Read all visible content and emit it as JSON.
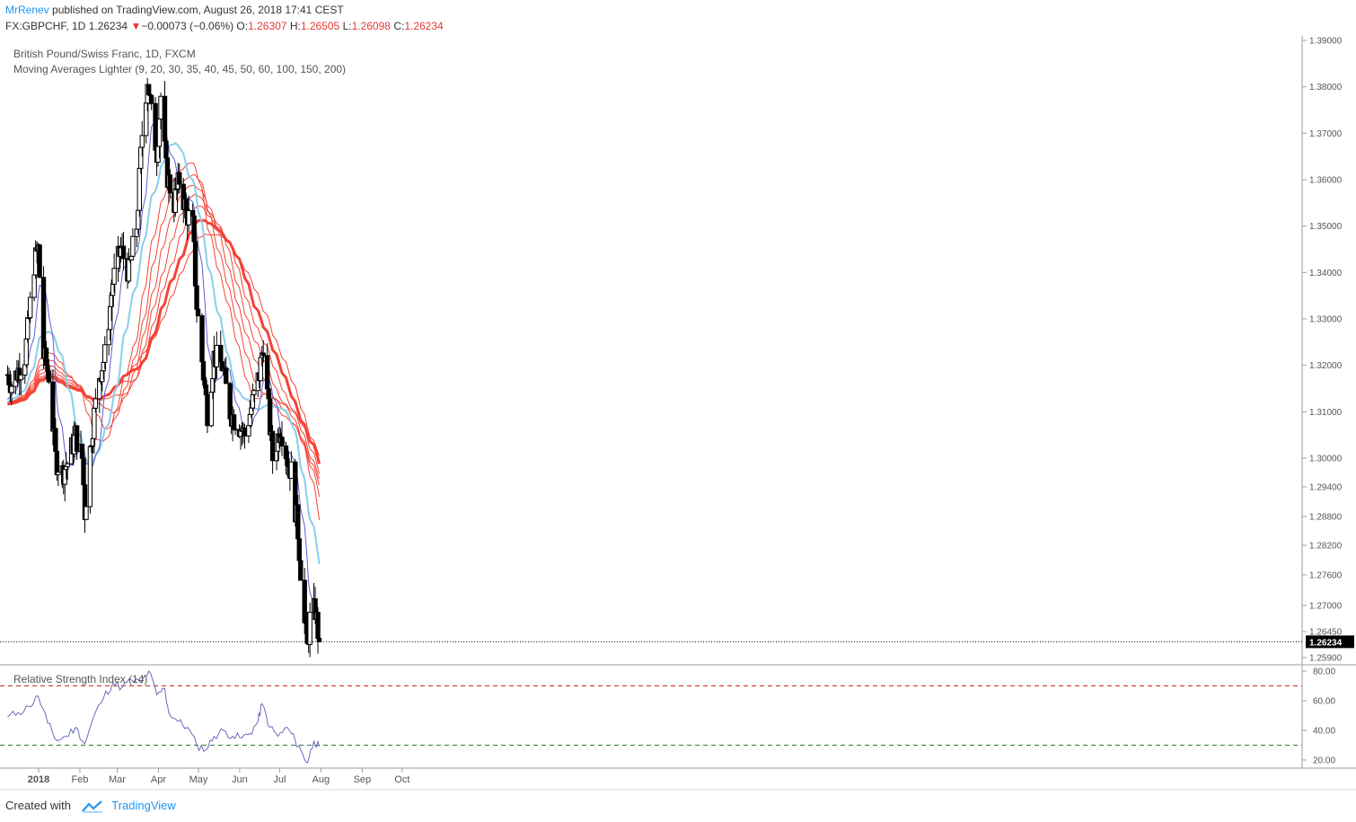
{
  "header": {
    "author": "MrRenev",
    "published_text": "published on TradingView.com, August 26, 2018 17:41 CEST",
    "symbol": "FX:GBPCHF, 1D",
    "last": "1.26234",
    "change_arrow": "▼",
    "change": "−0.00073 (−0.06%)",
    "open_label": "O:",
    "open": "1.26307",
    "high_label": "H:",
    "high": "1.26505",
    "low_label": "L:",
    "low": "1.26098",
    "close_label": "C:",
    "close": "1.26234"
  },
  "legend": {
    "series_name": "British Pound/Swiss Franc, 1D, FXCM",
    "ma_study": "Moving Averages Lighter (9, 20, 30, 35, 40, 45, 50, 60, 100, 150, 200)"
  },
  "rsi": {
    "title": "Relative Strength Index (14)"
  },
  "footer": {
    "created_with": "Created with",
    "brand": "TradingView"
  },
  "colors": {
    "up_candle": "#ffffff",
    "down_candle": "#000000",
    "ma9": "#5b5fd6",
    "ma20": "#87ceeb",
    "ma_red": "#f44336",
    "rsi_line": "#6b6bbf",
    "overbought": "#c62828",
    "oversold": "#2e7d32",
    "price_label_bg": "#000000"
  },
  "chart_data": {
    "type": "candlestick",
    "title": "British Pound/Swiss Franc, 1D, FXCM",
    "x_tick_labels": [
      "2018",
      "Feb",
      "Mar",
      "Apr",
      "May",
      "Jun",
      "Jul",
      "Aug",
      "Sep",
      "Oct"
    ],
    "y_tick_labels": [
      "1.39000",
      "1.38000",
      "1.37000",
      "1.36000",
      "1.35000",
      "1.34000",
      "1.33000",
      "1.32000",
      "1.31000",
      "1.30000",
      "1.29400",
      "1.28800",
      "1.28200",
      "1.27600",
      "1.27000",
      "1.26450",
      "1.25900"
    ],
    "ylim": [
      1.259,
      1.39
    ],
    "last_price_label": "1.26234",
    "last_price": 1.26234,
    "price_path": [
      {
        "date": "2018-01-02",
        "close": 1.318
      },
      {
        "date": "2018-01-05",
        "close": 1.316
      },
      {
        "date": "2018-01-10",
        "close": 1.319
      },
      {
        "date": "2018-01-15",
        "close": 1.322
      },
      {
        "date": "2018-01-18",
        "close": 1.33
      },
      {
        "date": "2018-01-22",
        "close": 1.342
      },
      {
        "date": "2018-01-25",
        "close": 1.345
      },
      {
        "date": "2018-01-29",
        "close": 1.322
      },
      {
        "date": "2018-02-02",
        "close": 1.318
      },
      {
        "date": "2018-02-07",
        "close": 1.3
      },
      {
        "date": "2018-02-12",
        "close": 1.297
      },
      {
        "date": "2018-02-16",
        "close": 1.299
      },
      {
        "date": "2018-02-22",
        "close": 1.305
      },
      {
        "date": "2018-02-27",
        "close": 1.3
      },
      {
        "date": "2018-03-01",
        "close": 1.289
      },
      {
        "date": "2018-03-06",
        "close": 1.305
      },
      {
        "date": "2018-03-12",
        "close": 1.318
      },
      {
        "date": "2018-03-16",
        "close": 1.322
      },
      {
        "date": "2018-03-22",
        "close": 1.338
      },
      {
        "date": "2018-03-28",
        "close": 1.345
      },
      {
        "date": "2018-04-03",
        "close": 1.34
      },
      {
        "date": "2018-04-09",
        "close": 1.35
      },
      {
        "date": "2018-04-13",
        "close": 1.37
      },
      {
        "date": "2018-04-17",
        "close": 1.382
      },
      {
        "date": "2018-04-20",
        "close": 1.374
      },
      {
        "date": "2018-04-24",
        "close": 1.366
      },
      {
        "date": "2018-04-27",
        "close": 1.378
      },
      {
        "date": "2018-05-01",
        "close": 1.362
      },
      {
        "date": "2018-05-07",
        "close": 1.355
      },
      {
        "date": "2018-05-11",
        "close": 1.36
      },
      {
        "date": "2018-05-16",
        "close": 1.353
      },
      {
        "date": "2018-05-21",
        "close": 1.35
      },
      {
        "date": "2018-05-24",
        "close": 1.333
      },
      {
        "date": "2018-05-29",
        "close": 1.318
      },
      {
        "date": "2018-06-01",
        "close": 1.31
      },
      {
        "date": "2018-06-06",
        "close": 1.322
      },
      {
        "date": "2018-06-12",
        "close": 1.32
      },
      {
        "date": "2018-06-18",
        "close": 1.31
      },
      {
        "date": "2018-06-25",
        "close": 1.307
      },
      {
        "date": "2018-06-29",
        "close": 1.305
      },
      {
        "date": "2018-07-05",
        "close": 1.312
      },
      {
        "date": "2018-07-10",
        "close": 1.318
      },
      {
        "date": "2018-07-13",
        "close": 1.325
      },
      {
        "date": "2018-07-17",
        "close": 1.31
      },
      {
        "date": "2018-07-20",
        "close": 1.3
      },
      {
        "date": "2018-07-26",
        "close": 1.307
      },
      {
        "date": "2018-07-31",
        "close": 1.3
      },
      {
        "date": "2018-08-03",
        "close": 1.297
      },
      {
        "date": "2018-08-08",
        "close": 1.285
      },
      {
        "date": "2018-08-13",
        "close": 1.266
      },
      {
        "date": "2018-08-15",
        "close": 1.261
      },
      {
        "date": "2018-08-17",
        "close": 1.267
      },
      {
        "date": "2018-08-21",
        "close": 1.269
      },
      {
        "date": "2018-08-24",
        "close": 1.26234
      }
    ],
    "rsi_levels": [
      70,
      30
    ],
    "rsi_ticks": [
      "80.00",
      "60.00",
      "40.00",
      "20.00"
    ],
    "rsi_path": [
      {
        "date": "2018-01-02",
        "rsi": 49
      },
      {
        "date": "2018-01-10",
        "rsi": 52
      },
      {
        "date": "2018-01-18",
        "rsi": 56
      },
      {
        "date": "2018-01-25",
        "rsi": 63
      },
      {
        "date": "2018-02-01",
        "rsi": 45
      },
      {
        "date": "2018-02-08",
        "rsi": 33
      },
      {
        "date": "2018-02-15",
        "rsi": 36
      },
      {
        "date": "2018-02-22",
        "rsi": 42
      },
      {
        "date": "2018-03-01",
        "rsi": 31
      },
      {
        "date": "2018-03-08",
        "rsi": 50
      },
      {
        "date": "2018-03-15",
        "rsi": 62
      },
      {
        "date": "2018-03-22",
        "rsi": 72
      },
      {
        "date": "2018-03-29",
        "rsi": 69
      },
      {
        "date": "2018-04-05",
        "rsi": 74
      },
      {
        "date": "2018-04-12",
        "rsi": 72
      },
      {
        "date": "2018-04-18",
        "rsi": 80
      },
      {
        "date": "2018-04-24",
        "rsi": 64
      },
      {
        "date": "2018-04-30",
        "rsi": 68
      },
      {
        "date": "2018-05-03",
        "rsi": 52
      },
      {
        "date": "2018-05-10",
        "rsi": 46
      },
      {
        "date": "2018-05-17",
        "rsi": 42
      },
      {
        "date": "2018-05-24",
        "rsi": 30
      },
      {
        "date": "2018-05-31",
        "rsi": 27
      },
      {
        "date": "2018-06-06",
        "rsi": 36
      },
      {
        "date": "2018-06-13",
        "rsi": 40
      },
      {
        "date": "2018-06-20",
        "rsi": 36
      },
      {
        "date": "2018-06-27",
        "rsi": 35
      },
      {
        "date": "2018-07-03",
        "rsi": 38
      },
      {
        "date": "2018-07-09",
        "rsi": 46
      },
      {
        "date": "2018-07-12",
        "rsi": 58
      },
      {
        "date": "2018-07-18",
        "rsi": 42
      },
      {
        "date": "2018-07-24",
        "rsi": 36
      },
      {
        "date": "2018-07-31",
        "rsi": 42
      },
      {
        "date": "2018-08-06",
        "rsi": 33
      },
      {
        "date": "2018-08-10",
        "rsi": 27
      },
      {
        "date": "2018-08-15",
        "rsi": 18
      },
      {
        "date": "2018-08-20",
        "rsi": 33
      },
      {
        "date": "2018-08-24",
        "rsi": 29
      }
    ]
  }
}
